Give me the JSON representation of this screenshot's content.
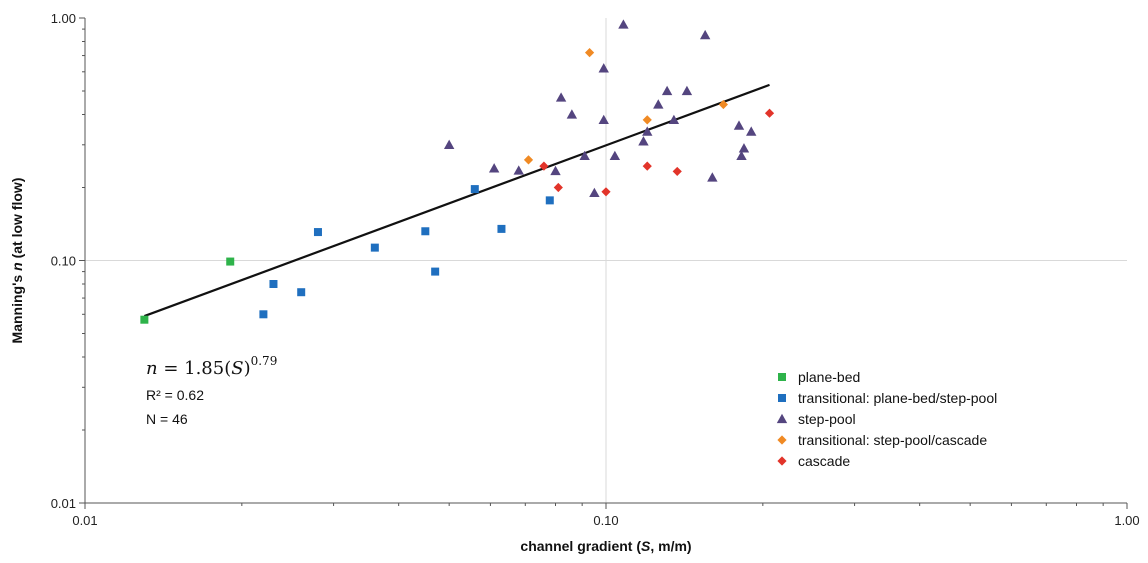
{
  "chart_data": {
    "type": "scatter",
    "title": "",
    "xlabel_prefix": "channel gradient (",
    "xlabel_var": "S",
    "xlabel_suffix": ", m/m)",
    "ylabel_prefix": "Manning's ",
    "ylabel_var": "n",
    "ylabel_suffix": " (at low flow)",
    "xscale": "log",
    "yscale": "log",
    "xlim": [
      0.01,
      1.0
    ],
    "ylim": [
      0.01,
      1.0
    ],
    "xticks": [
      0.01,
      0.1,
      1.0
    ],
    "yticks": [
      0.01,
      0.1,
      1.0
    ],
    "xtick_labels": [
      "0.01",
      "0.10",
      "1.00"
    ],
    "ytick_labels": [
      "0.01",
      "0.10",
      "1.00"
    ],
    "grid": true,
    "legend_position": "bottom-right",
    "series": [
      {
        "name": "plane-bed",
        "marker": "square",
        "color": "#2eb34a",
        "x": [
          0.013,
          0.019
        ],
        "y": [
          0.057,
          0.099
        ]
      },
      {
        "name": "transitional: plane-bed/step-pool",
        "marker": "square",
        "color": "#1f6fbf",
        "x": [
          0.022,
          0.023,
          0.026,
          0.028,
          0.036,
          0.045,
          0.047,
          0.056,
          0.063,
          0.078
        ],
        "y": [
          0.06,
          0.08,
          0.074,
          0.131,
          0.113,
          0.132,
          0.09,
          0.197,
          0.135,
          0.177
        ]
      },
      {
        "name": "step-pool",
        "marker": "triangle",
        "color": "#54457f",
        "x": [
          0.05,
          0.061,
          0.068,
          0.08,
          0.082,
          0.086,
          0.091,
          0.095,
          0.099,
          0.099,
          0.104,
          0.108,
          0.118,
          0.12,
          0.126,
          0.131,
          0.135,
          0.143,
          0.155,
          0.16,
          0.18,
          0.182,
          0.184,
          0.19
        ],
        "y": [
          0.3,
          0.24,
          0.235,
          0.234,
          0.47,
          0.4,
          0.27,
          0.19,
          0.62,
          0.38,
          0.27,
          0.94,
          0.31,
          0.34,
          0.44,
          0.5,
          0.38,
          0.5,
          0.85,
          0.22,
          0.36,
          0.27,
          0.29,
          0.34
        ]
      },
      {
        "name": "transitional: step-pool/cascade",
        "marker": "diamond",
        "color": "#f08a24",
        "x": [
          0.071,
          0.093,
          0.12,
          0.168
        ],
        "y": [
          0.26,
          0.72,
          0.38,
          0.44
        ]
      },
      {
        "name": "cascade",
        "marker": "diamond",
        "color": "#e2342a",
        "x": [
          0.076,
          0.081,
          0.1,
          0.12,
          0.137,
          0.206
        ],
        "y": [
          0.245,
          0.2,
          0.192,
          0.245,
          0.233,
          0.405
        ]
      }
    ],
    "fit_line": {
      "x": [
        0.013,
        0.206
      ],
      "y": [
        0.059,
        0.53
      ],
      "color": "#111111"
    },
    "annotations": {
      "equation_lhs": "n",
      "equation_mid": " = 1.85(",
      "equation_var": "S",
      "equation_rhs": ")",
      "equation_exponent": "0.79",
      "r_squared": "R² = 0.62",
      "n_count": "N = 46"
    }
  }
}
